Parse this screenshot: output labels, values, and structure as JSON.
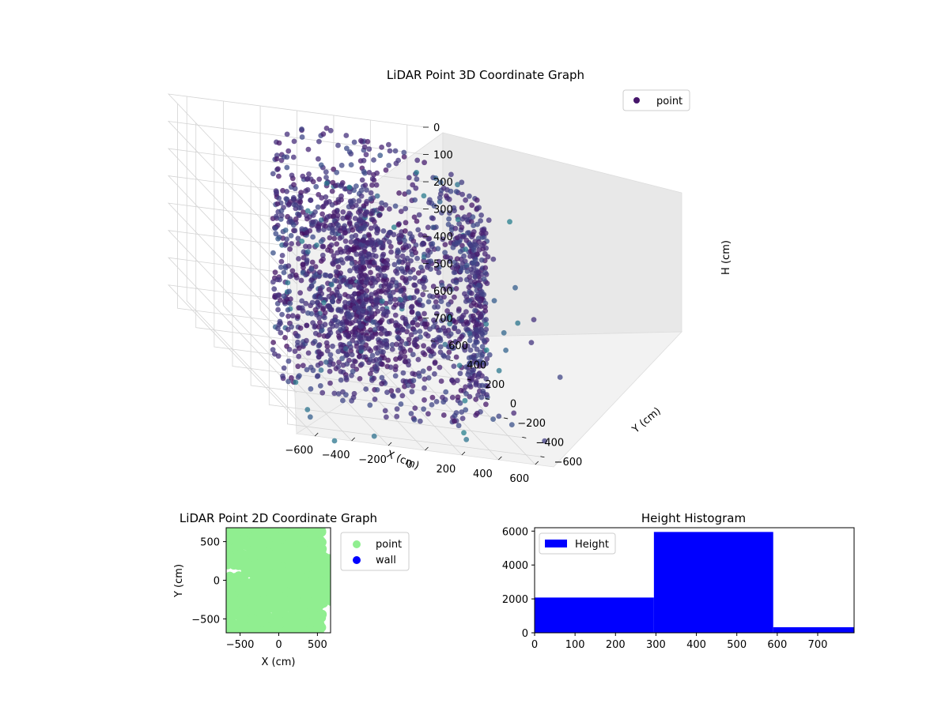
{
  "figure": {
    "background": "#ffffff"
  },
  "chart_data": [
    {
      "id": "scatter3d",
      "type": "scatter",
      "projection": "3d",
      "title": "LiDAR Point 3D Coordinate Graph",
      "xlabel": "X (cm)",
      "ylabel": "Y (cm)",
      "zlabel": "H (cm)",
      "xlim": [
        -700,
        700
      ],
      "ylim": [
        -700,
        700
      ],
      "zlim": [
        750,
        0
      ],
      "z_axis_inverted": true,
      "x_ticks": [
        -600,
        -400,
        -200,
        0,
        200,
        400,
        600
      ],
      "y_ticks": [
        -600,
        -400,
        -200,
        0,
        200,
        400,
        600
      ],
      "z_ticks": [
        0,
        100,
        200,
        300,
        400,
        500,
        600,
        700
      ],
      "colormap": "viridis",
      "legend": {
        "placement": "top-right",
        "entries": [
          "point"
        ]
      },
      "grid": true,
      "series": [
        {
          "name": "point",
          "color": "#46166b",
          "description_of_shape": "cylindrical wall of points, radius ~600, heights 0-700, plus inner cluster and scattered outliers"
        }
      ]
    },
    {
      "id": "scatter2d",
      "type": "scatter",
      "title": "LiDAR Point 2D Coordinate Graph",
      "xlabel": "X (cm)",
      "ylabel": "Y (cm)",
      "xlim": [
        -680,
        670
      ],
      "ylim": [
        -680,
        680
      ],
      "x_ticks": [
        -500,
        0,
        500
      ],
      "y_ticks": [
        -500,
        0,
        500
      ],
      "legend": {
        "placement": "right-outside",
        "entries": [
          {
            "name": "point",
            "color": "#90ee90"
          },
          {
            "name": "wall",
            "color": "#0000ff"
          }
        ]
      },
      "grid": false
    },
    {
      "id": "histogram",
      "type": "bar",
      "title": "Height Histogram",
      "xlabel": "",
      "ylabel": "",
      "xlim": [
        0,
        790
      ],
      "ylim": [
        0,
        6200
      ],
      "x_ticks": [
        0,
        100,
        200,
        300,
        400,
        500,
        600,
        700
      ],
      "y_ticks": [
        0,
        2000,
        4000,
        6000
      ],
      "bins": [
        {
          "start": 0,
          "end": 295,
          "value": 2080
        },
        {
          "start": 295,
          "end": 590,
          "value": 5950
        },
        {
          "start": 590,
          "end": 790,
          "value": 330
        }
      ],
      "series": [
        {
          "name": "Height",
          "color": "#0000ff"
        }
      ],
      "legend": {
        "placement": "upper-left",
        "entries": [
          "Height"
        ]
      },
      "grid": false
    }
  ]
}
